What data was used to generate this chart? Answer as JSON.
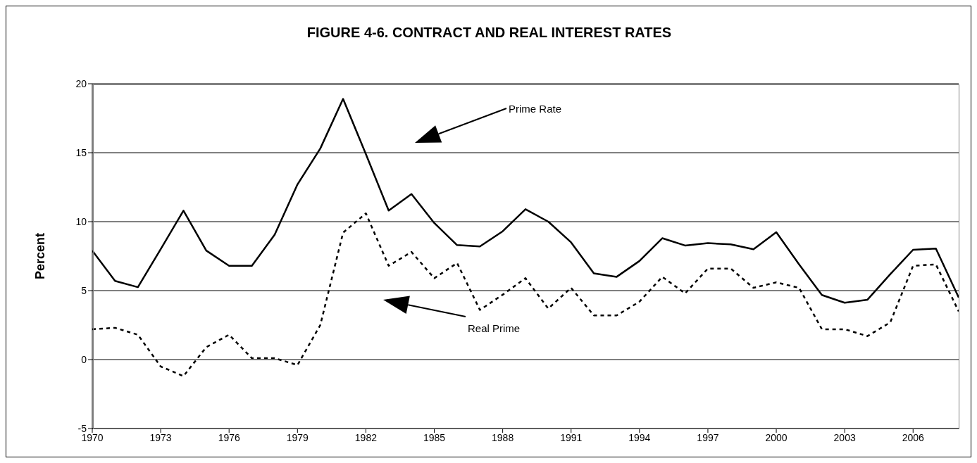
{
  "chart_data": {
    "type": "line",
    "title": "FIGURE 4-6. CONTRACT AND REAL INTEREST RATES",
    "ylabel": "Percent",
    "x": [
      1970,
      1971,
      1972,
      1973,
      1974,
      1975,
      1976,
      1977,
      1978,
      1979,
      1980,
      1981,
      1982,
      1983,
      1984,
      1985,
      1986,
      1987,
      1988,
      1989,
      1990,
      1991,
      1992,
      1993,
      1994,
      1995,
      1996,
      1997,
      1998,
      1999,
      2000,
      2001,
      2002,
      2003,
      2004,
      2005,
      2006,
      2007,
      2008
    ],
    "series": [
      {
        "color": "#000000",
        "line_style": "solid",
        "values": [
          7.9,
          5.7,
          5.25,
          8.0,
          10.8,
          7.9,
          6.8,
          6.8,
          9.06,
          12.7,
          15.3,
          18.9,
          14.9,
          10.8,
          12.0,
          9.9,
          8.3,
          8.2,
          9.3,
          10.9,
          10.0,
          8.5,
          6.25,
          6.0,
          7.15,
          8.8,
          8.27,
          8.44,
          8.35,
          8.0,
          9.23,
          6.9,
          4.68,
          4.12,
          4.34,
          6.19,
          7.96,
          8.05,
          4.5
        ]
      },
      {
        "color": "#000000",
        "line_style": "dashed",
        "values": [
          2.2,
          2.3,
          1.8,
          -0.5,
          -1.2,
          0.9,
          1.8,
          0.1,
          0.1,
          -0.4,
          2.5,
          9.2,
          10.6,
          6.8,
          7.8,
          5.9,
          7.0,
          3.6,
          4.7,
          5.9,
          3.7,
          5.2,
          3.2,
          3.2,
          4.2,
          6.0,
          4.8,
          6.6,
          6.6,
          5.2,
          5.6,
          5.2,
          2.2,
          2.2,
          1.7,
          2.7,
          6.8,
          6.9,
          3.5
        ]
      }
    ],
    "xlim": [
      1970,
      2008
    ],
    "xticks": [
      1970,
      1973,
      1976,
      1979,
      1982,
      1985,
      1988,
      1991,
      1994,
      1997,
      2000,
      2003,
      2006
    ],
    "ylim": [
      -5,
      20
    ],
    "yticks": [
      -5,
      0,
      5,
      10,
      15,
      20
    ],
    "annotations": [
      "Prime Rate",
      "Real Prime"
    ],
    "grid": "y",
    "legend": false,
    "marker": "none"
  }
}
